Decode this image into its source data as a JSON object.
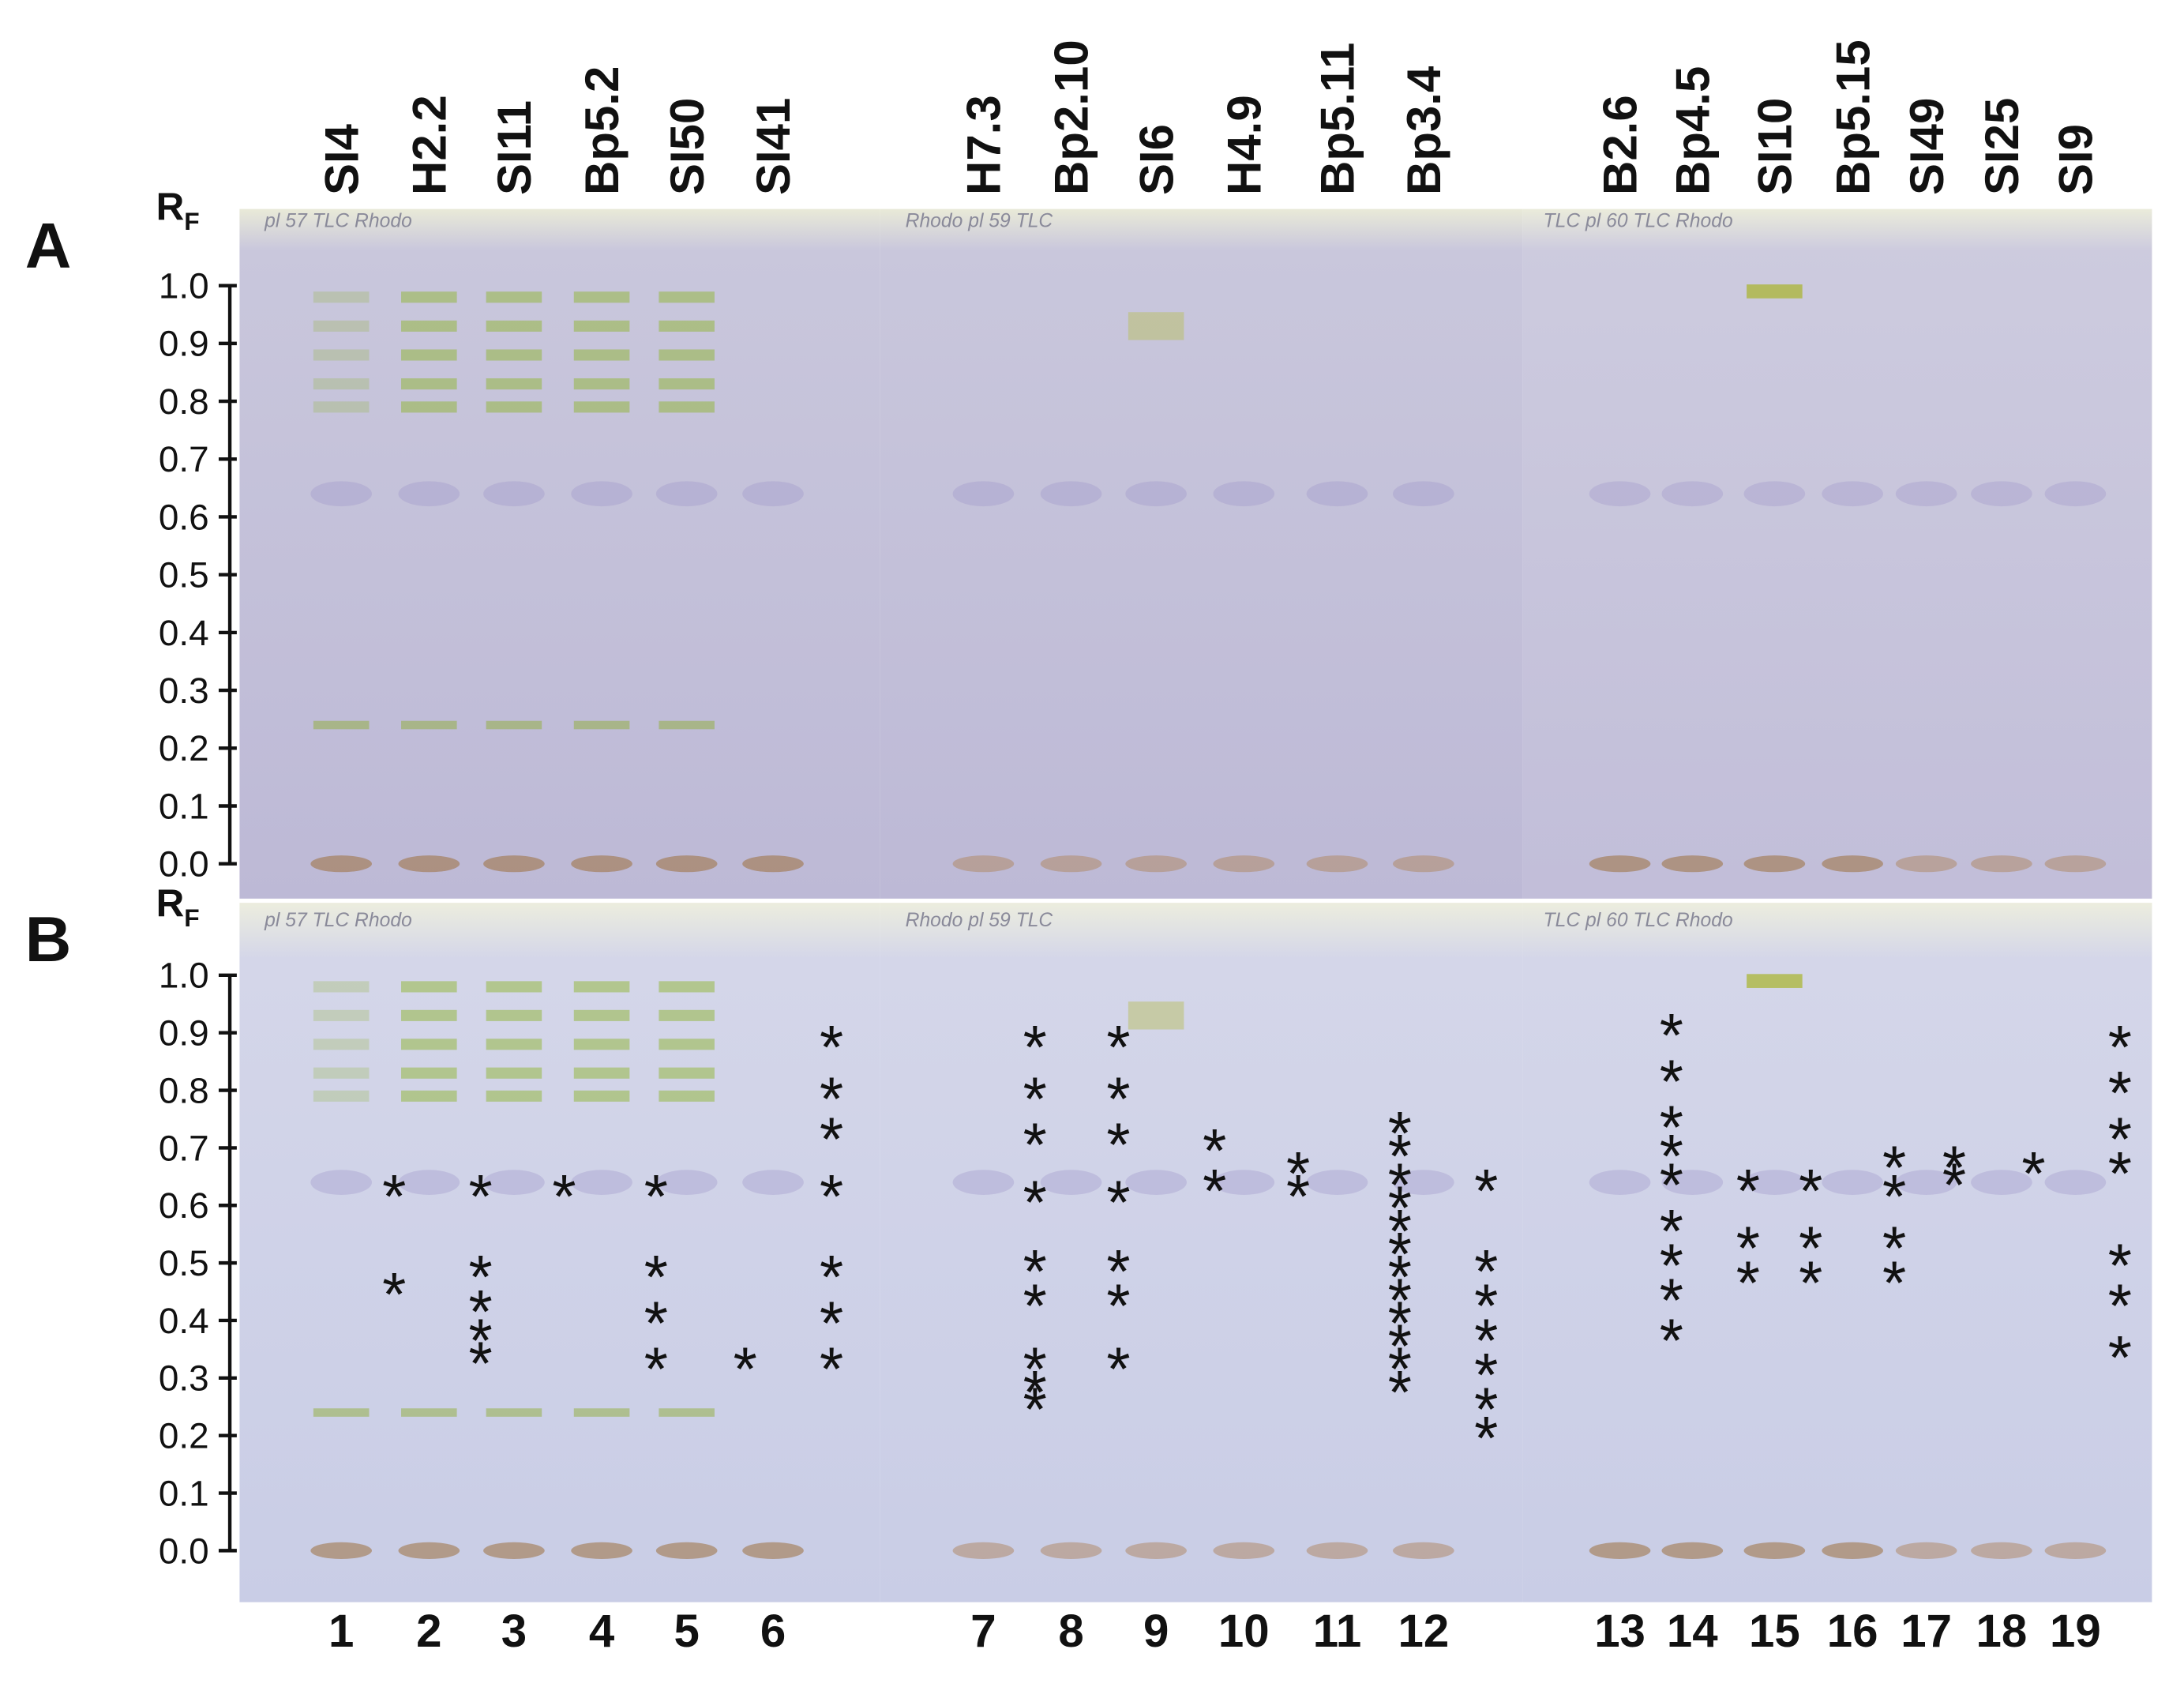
{
  "panel_a": {
    "label": "A"
  },
  "panel_b": {
    "label": "B",
    "asterisk_symbol": "*",
    "asterisks": [
      [
        0.62,
        0.45
      ],
      [
        0.62,
        0.48,
        0.42,
        0.37,
        0.33
      ],
      [
        0.62
      ],
      [
        0.62,
        0.48,
        0.4,
        0.32
      ],
      [
        0.32
      ],
      [
        0.88,
        0.79,
        0.72,
        0.62,
        0.48,
        0.4,
        0.32
      ],
      [
        0.88,
        0.79,
        0.71,
        0.61,
        0.49,
        0.43,
        0.32,
        0.28,
        0.25
      ],
      [
        0.88,
        0.79,
        0.71,
        0.61,
        0.49,
        0.43,
        0.32
      ],
      [
        0.7,
        0.63
      ],
      [
        0.66,
        0.62
      ],
      [
        0.73,
        0.69,
        0.64,
        0.6,
        0.56,
        0.52,
        0.48,
        0.44,
        0.4,
        0.36,
        0.32,
        0.28
      ],
      [
        0.63,
        0.49,
        0.43,
        0.37,
        0.31,
        0.25,
        0.2
      ],
      [
        0.9,
        0.82,
        0.74,
        0.69,
        0.64,
        0.56,
        0.5,
        0.44,
        0.37
      ],
      [
        0.63,
        0.53,
        0.47
      ],
      [
        0.63,
        0.53,
        0.47
      ],
      [
        0.67,
        0.62,
        0.53,
        0.47
      ],
      [
        0.67,
        0.64
      ],
      [
        0.66
      ],
      [
        0.88,
        0.8,
        0.72,
        0.66,
        0.5,
        0.43,
        0.34
      ]
    ]
  },
  "rf_label": {
    "main": "R",
    "subscript": "F"
  },
  "rf_ticks": [
    {
      "value": 1,
      "label": "1.0"
    },
    0.9,
    0.8,
    0.7,
    0.6,
    0.5,
    0.4,
    0.3,
    0.2,
    0.1,
    {
      "value": 0,
      "label": "0.0"
    }
  ],
  "lanes": [
    "SI4",
    "H2.2",
    "SI11",
    "Bp5.2",
    "SI50",
    "SI41",
    "H7.3",
    "Bp2.10",
    "SI6",
    "H4.9",
    "Bp5.11",
    "Bp3.4",
    "B2.6",
    "Bp4.5",
    "SI10",
    "Bp5.15",
    "SI49",
    "SI25",
    "SI9"
  ],
  "lane_numbers": [
    "1",
    "2",
    "3",
    "4",
    "5",
    "6",
    "7",
    "8",
    "9",
    "10",
    "11",
    "12",
    "13",
    "14",
    "15",
    "16",
    "17",
    "18",
    "19"
  ],
  "plate_notes": [
    "pl 57   TLC   Rhodo",
    "Rhodo   pl 59   TLC",
    "TLC pl 60   TLC   Rhodo"
  ]
}
